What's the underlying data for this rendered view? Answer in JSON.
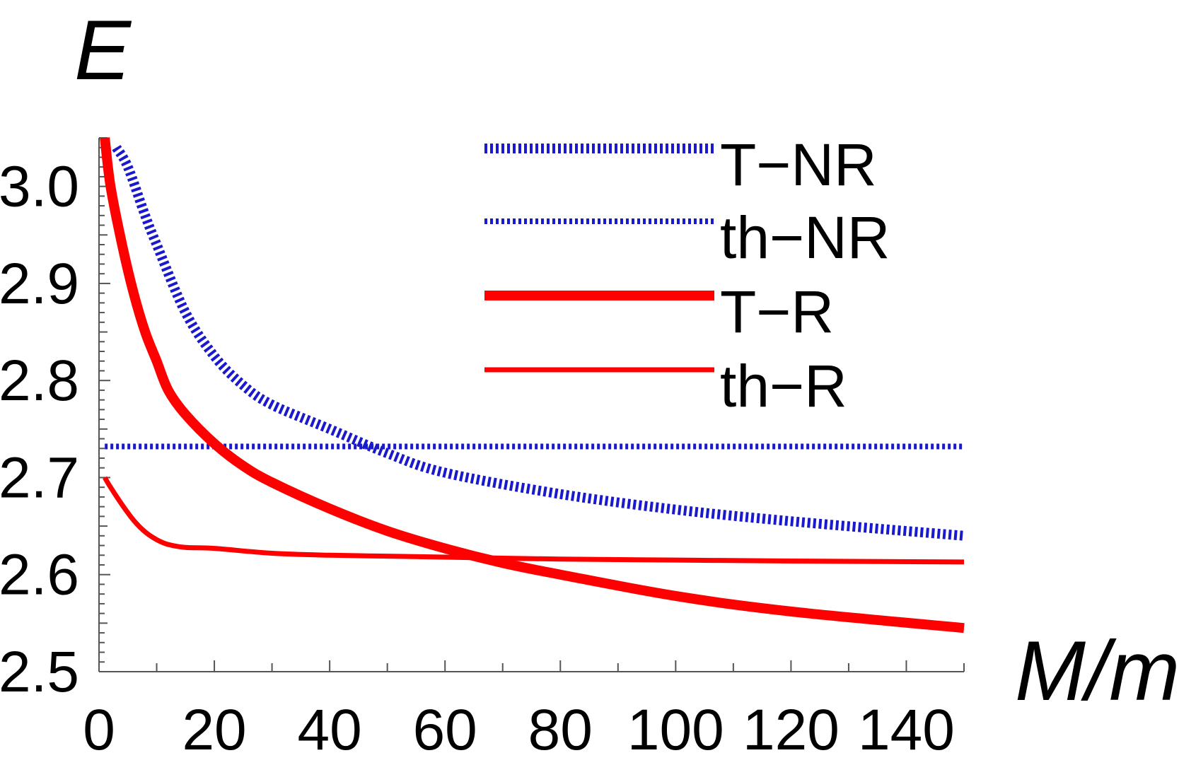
{
  "chart_data": {
    "type": "line",
    "title": "",
    "xlabel": "M/m",
    "ylabel": "E",
    "xlim": [
      0,
      150
    ],
    "ylim": [
      2.5,
      3.05
    ],
    "xticks": [
      0,
      20,
      40,
      60,
      80,
      100,
      120,
      140
    ],
    "yticks": [
      2.5,
      2.6,
      2.7,
      2.8,
      2.9,
      3.0
    ],
    "xtick_labels": [
      "0",
      "20",
      "40",
      "60",
      "80",
      "100",
      "120",
      "140"
    ],
    "ytick_labels": [
      "2.5",
      "2.6",
      "2.7",
      "2.8",
      "2.9",
      "3.0"
    ],
    "legend_position": "top-right",
    "series": [
      {
        "name": "T−NR",
        "color": "#1a1acc",
        "style": "dashed-thick",
        "x": [
          3,
          5,
          8,
          10,
          15,
          20,
          25,
          30,
          40,
          50,
          60,
          80,
          100,
          120,
          150
        ],
        "y": [
          3.04,
          3.02,
          2.97,
          2.94,
          2.87,
          2.825,
          2.795,
          2.775,
          2.75,
          2.725,
          2.705,
          2.683,
          2.667,
          2.655,
          2.64
        ]
      },
      {
        "name": "th−NR",
        "color": "#1a1acc",
        "style": "dashed-thin",
        "x": [
          1,
          150
        ],
        "y": [
          2.732,
          2.732
        ]
      },
      {
        "name": "T−R",
        "color": "#ff0000",
        "style": "solid-thick",
        "x": [
          1,
          2,
          4,
          6,
          8,
          10,
          12,
          15,
          20,
          25,
          30,
          40,
          50,
          60,
          70,
          80,
          100,
          120,
          150
        ],
        "y": [
          3.05,
          3.0,
          2.94,
          2.89,
          2.85,
          2.82,
          2.79,
          2.765,
          2.735,
          2.712,
          2.695,
          2.668,
          2.645,
          2.627,
          2.612,
          2.6,
          2.578,
          2.562,
          2.545
        ]
      },
      {
        "name": "th−R",
        "color": "#ff0000",
        "style": "solid-thin",
        "x": [
          1,
          2,
          4,
          6,
          8,
          10,
          12,
          15,
          20,
          30,
          40,
          50,
          60,
          80,
          100,
          120,
          150
        ],
        "y": [
          2.7,
          2.69,
          2.672,
          2.656,
          2.644,
          2.636,
          2.631,
          2.628,
          2.627,
          2.622,
          2.62,
          2.619,
          2.618,
          2.616,
          2.615,
          2.614,
          2.613
        ]
      }
    ]
  }
}
